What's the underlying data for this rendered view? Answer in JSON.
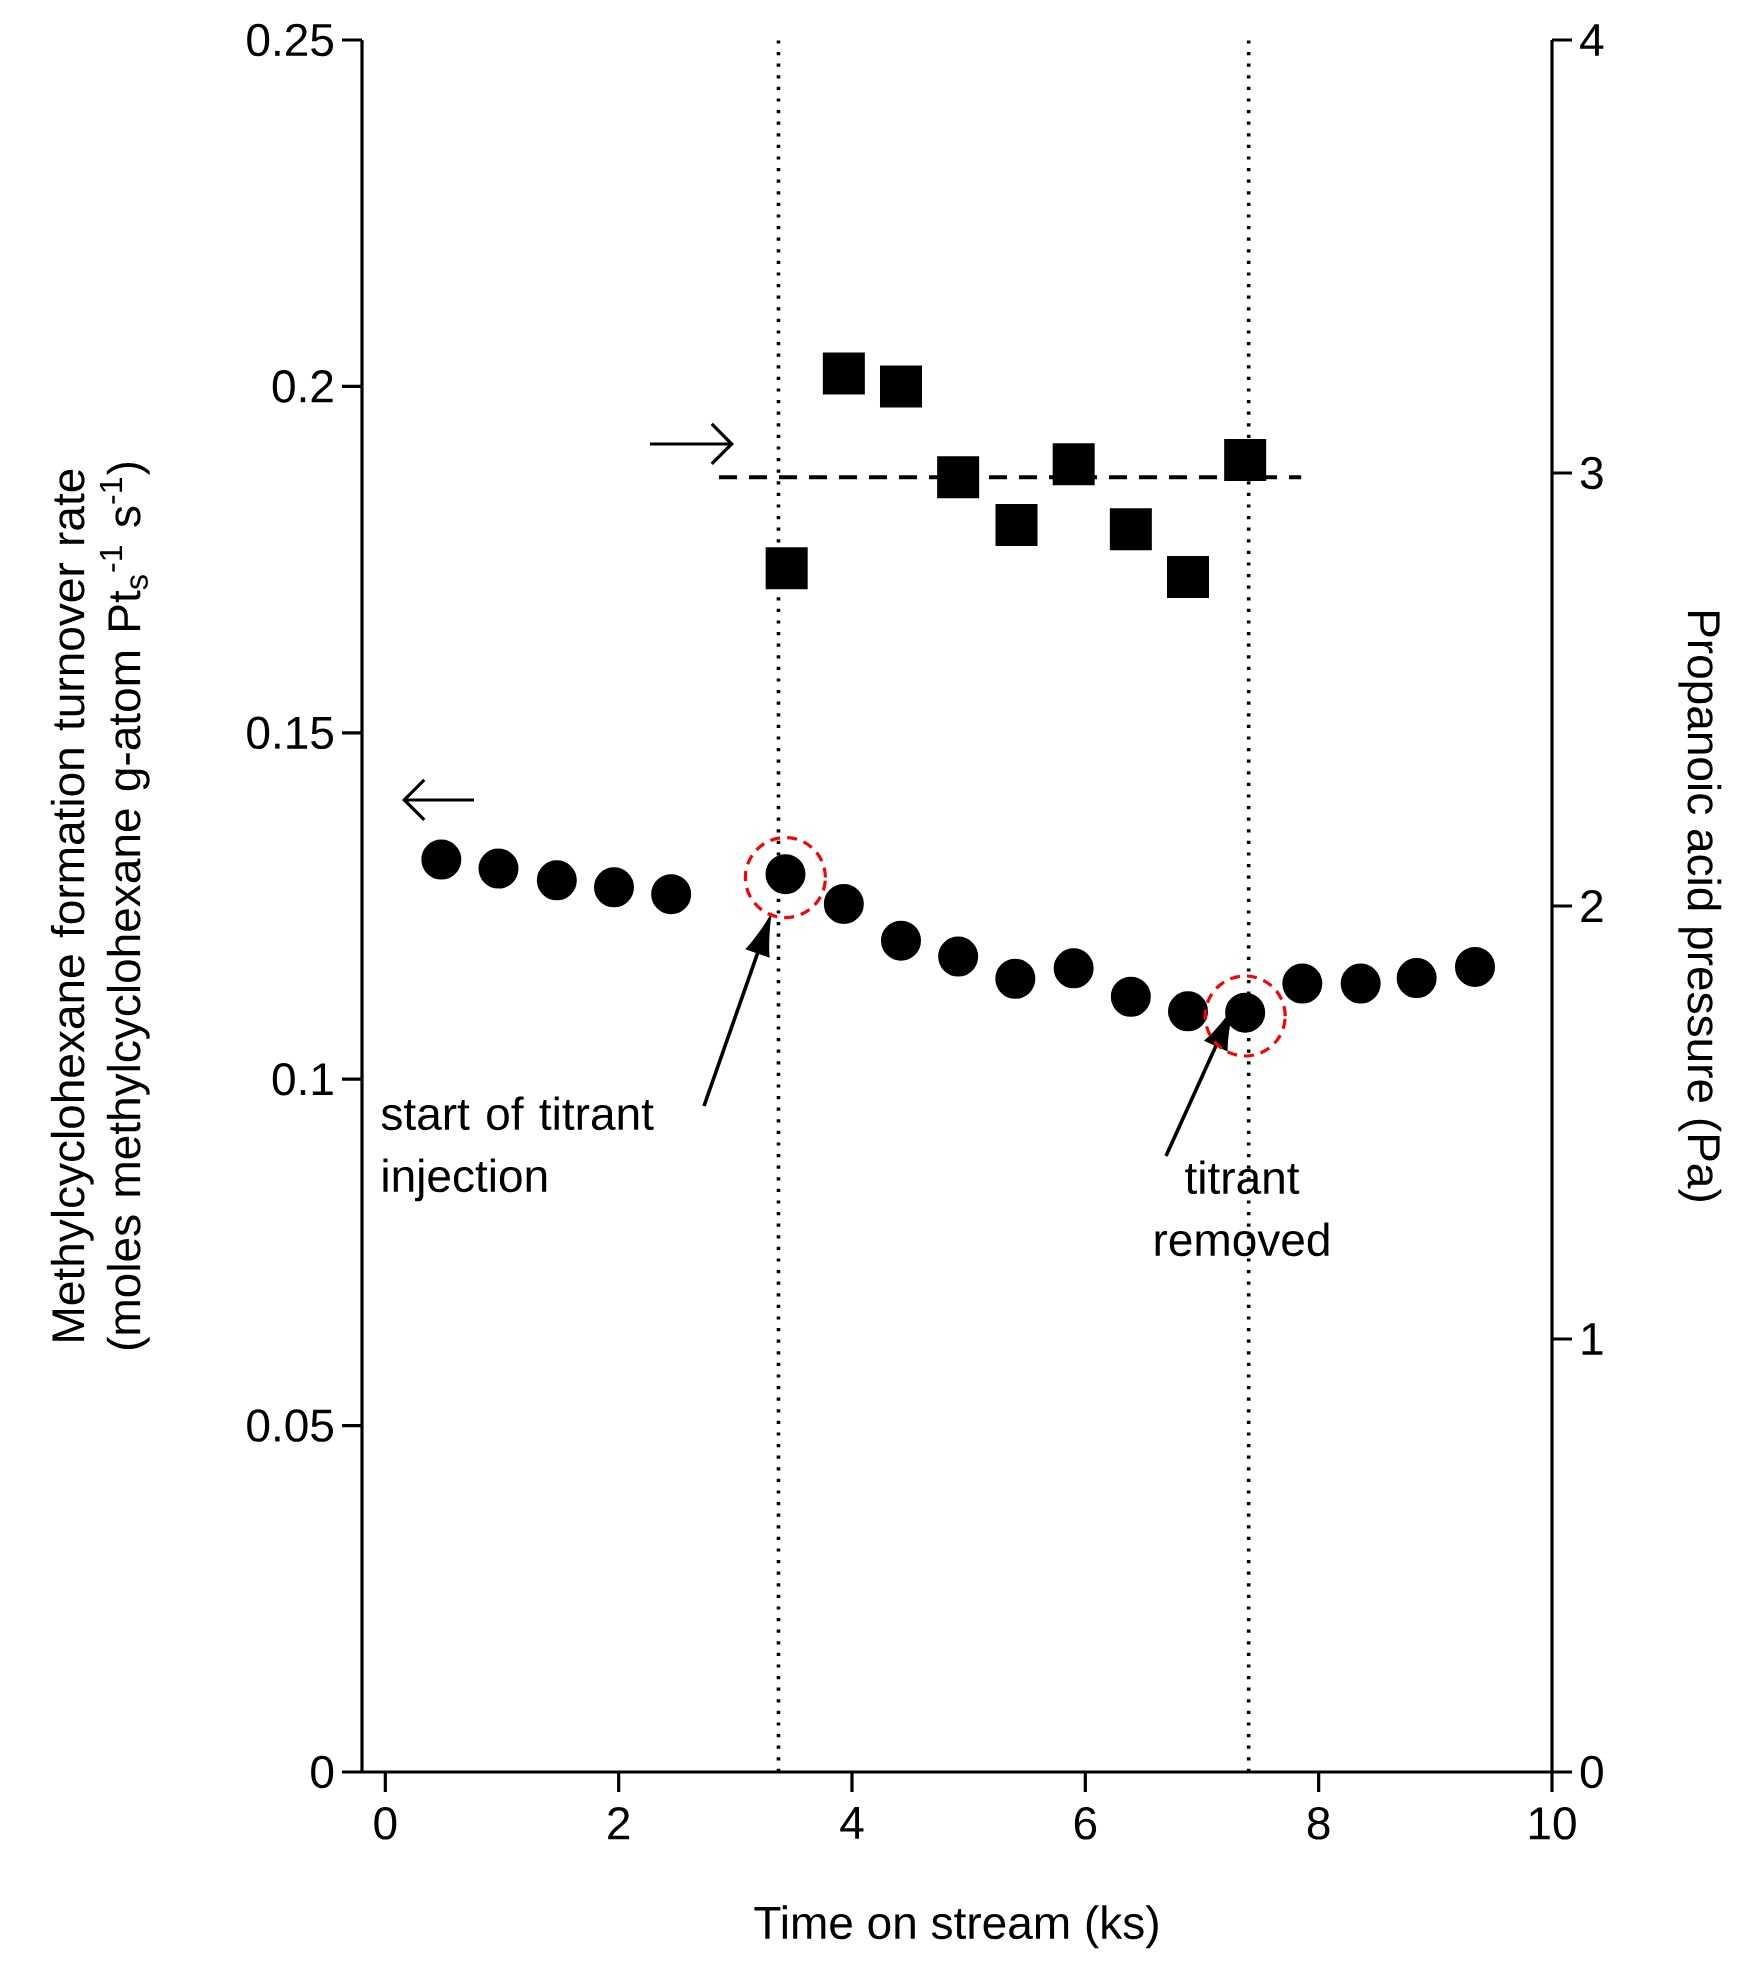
{
  "chart_data": {
    "type": "scatter",
    "xlabel": "Time on stream (ks)",
    "ylabel": "Methylcyclohexane formation turnover rate (moles methylcyclohexane g-atom Pt$_{s}$$^{-1}$ s$^{-1}$)",
    "y2label": "Propanoic acid pressure (Pa)",
    "xlim": [
      -0.2,
      10
    ],
    "xticks": [
      0,
      2,
      4,
      6,
      8,
      10
    ],
    "ylim": [
      0,
      0.25
    ],
    "yticks": [
      0,
      0.05,
      0.1,
      0.15,
      0.2,
      0.25
    ],
    "y2lim": [
      0,
      4
    ],
    "y2ticks": [
      0,
      1,
      2,
      3,
      4
    ],
    "series": [
      {
        "type": "scatter",
        "marker": "circle",
        "color": "#000000",
        "x": [
          0.48,
          0.97,
          1.47,
          1.96,
          2.45,
          3.43,
          3.93,
          4.42,
          4.91,
          5.4,
          5.9,
          6.39,
          6.88,
          7.37,
          7.86,
          8.36,
          8.84,
          9.34
        ],
        "values": [
          0.1317,
          0.1304,
          0.1287,
          0.1277,
          0.1267,
          0.1296,
          0.1253,
          0.12,
          0.1177,
          0.1145,
          0.116,
          0.1119,
          0.1098,
          0.1096,
          0.1138,
          0.1138,
          0.1146,
          0.1162
        ]
      },
      {
        "type": "scatter",
        "marker": "square",
        "axis": "y2",
        "color": "#000000",
        "x": [
          3.44,
          3.93,
          4.42,
          4.91,
          5.41,
          5.9,
          6.39,
          6.88,
          7.37
        ],
        "values": [
          2.78,
          3.23,
          3.2,
          2.99,
          2.88,
          3.02,
          2.87,
          2.76,
          3.03
        ]
      },
      {
        "type": "line",
        "line_style": "dashed",
        "marker": "none",
        "axis": "y2",
        "color": "#000000",
        "x": [
          2.86,
          7.85
        ],
        "values": [
          2.99,
          2.99
        ]
      }
    ],
    "ref_lines": [
      {
        "axis": "x",
        "value": 3.37,
        "line_style": "dotted"
      },
      {
        "axis": "x",
        "value": 7.4,
        "line_style": "dotted"
      }
    ],
    "annotations": [
      "start of titrant injection",
      "titrant removed"
    ]
  }
}
